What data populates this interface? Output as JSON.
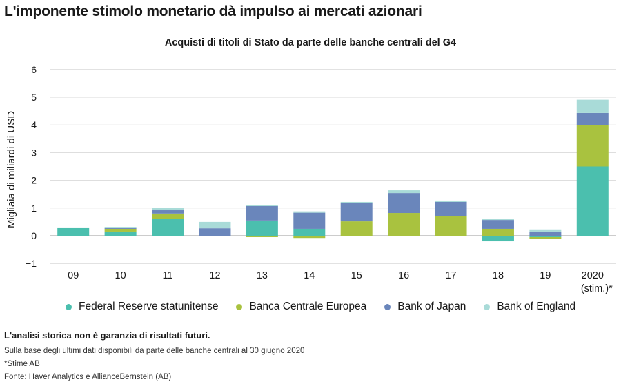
{
  "headline": "L'imponente stimolo monetario dà impulso ai mercati azionari",
  "footer": {
    "disclaimer": "L'analisi storica non è garanzia di risultati futuri.",
    "notes": [
      "Sulla base degli ultimi dati disponibili da parte delle banche centrali al 30 giugno 2020",
      "*Stime AB",
      "Fonte: Haver Analytics e AllianceBernstein (AB)"
    ]
  },
  "chart_data": {
    "type": "bar",
    "stacked": true,
    "title": "Acquisti di titoli di Stato da parte delle banche centrali del G4",
    "ylabel": "Migliaia di miliardi di USD",
    "xlabel": "",
    "ylim": [
      -1,
      6
    ],
    "yticks": [
      -1,
      0,
      1,
      2,
      3,
      4,
      5,
      6
    ],
    "grid": true,
    "legend_position": "bottom",
    "categories": [
      "09",
      "10",
      "11",
      "12",
      "13",
      "14",
      "15",
      "16",
      "17",
      "18",
      "19",
      "2020\n(stim.)*"
    ],
    "series": [
      {
        "name": "Federal Reserve statunitense",
        "color": "#4bbfae",
        "values": [
          0.3,
          0.15,
          0.6,
          0.0,
          0.55,
          0.25,
          0.0,
          0.0,
          0.0,
          -0.2,
          -0.05,
          2.5
        ]
      },
      {
        "name": "Banca Centrale Europea",
        "color": "#a9c23f",
        "values": [
          0.0,
          0.1,
          0.2,
          0.0,
          -0.05,
          -0.08,
          0.52,
          0.82,
          0.72,
          0.25,
          -0.05,
          1.5
        ]
      },
      {
        "name": "Bank of Japan",
        "color": "#6a86bb",
        "values": [
          0.0,
          0.05,
          0.12,
          0.27,
          0.52,
          0.58,
          0.67,
          0.72,
          0.5,
          0.32,
          0.15,
          0.43
        ]
      },
      {
        "name": "Bank of England",
        "color": "#a9dbd8",
        "values": [
          0.0,
          0.02,
          0.08,
          0.23,
          0.03,
          0.05,
          0.03,
          0.1,
          0.05,
          0.03,
          0.08,
          0.48
        ]
      }
    ]
  }
}
